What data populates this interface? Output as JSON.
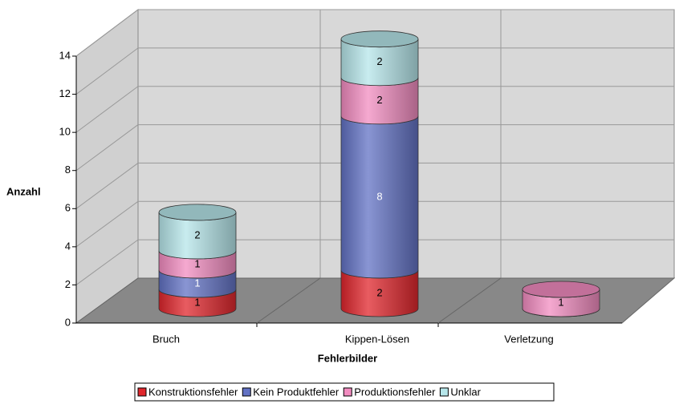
{
  "chart_data": {
    "type": "bar3d-cylinder-stacked",
    "categories": [
      "Bruch",
      "Kippen-Lösen",
      "Verletzung"
    ],
    "series": [
      {
        "name": "Konstruktionsfehler",
        "color": "#e0262c",
        "values": [
          1,
          2,
          0
        ]
      },
      {
        "name": "Kein Produktfehler",
        "color": "#6272c4",
        "values": [
          1,
          8,
          0
        ]
      },
      {
        "name": "Produktionsfehler",
        "color": "#f28cc0",
        "values": [
          1,
          2,
          1
        ]
      },
      {
        "name": "Unklar",
        "color": "#b6e6ea",
        "values": [
          2,
          2,
          0
        ]
      }
    ],
    "xlabel": "Fehlerbilder",
    "ylabel": "Anzahl",
    "ylim": [
      0,
      14
    ],
    "yticks": [
      0,
      2,
      4,
      6,
      8,
      10,
      12,
      14
    ],
    "grid": true,
    "legend": "bottom"
  }
}
